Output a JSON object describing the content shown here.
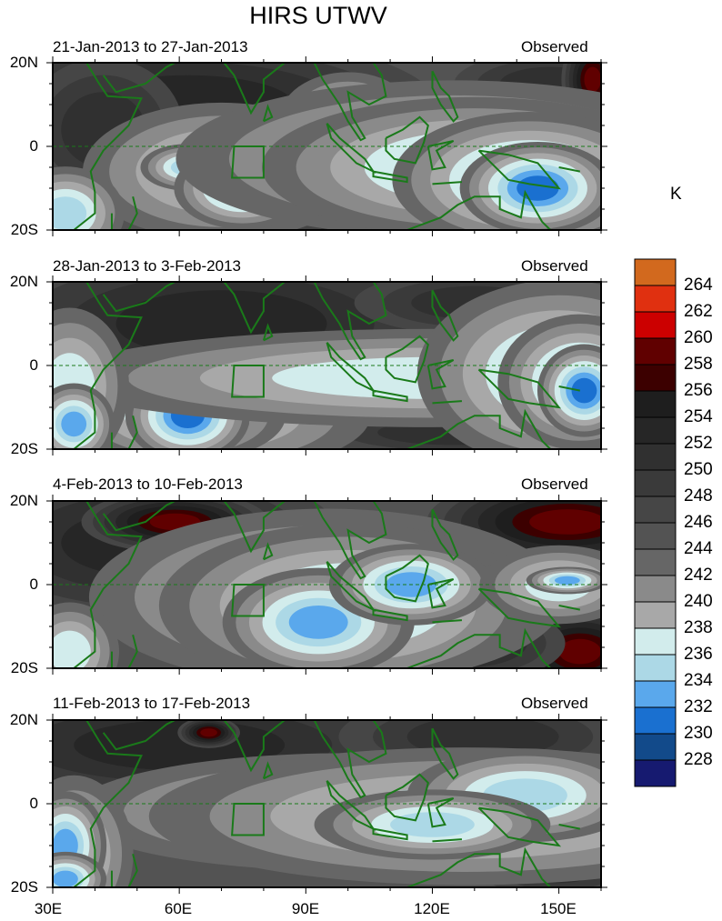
{
  "chart_data": {
    "type": "heatmap",
    "title": "HIRS UTWV",
    "units": "K",
    "xlim": [
      30,
      160
    ],
    "ylim": [
      -20,
      20
    ],
    "x_ticks": [
      "30E",
      "60E",
      "90E",
      "120E",
      "150E"
    ],
    "x_tick_values": [
      30,
      60,
      90,
      120,
      150
    ],
    "y_ticks": [
      "20N",
      "0",
      "20S"
    ],
    "y_tick_values": [
      20,
      0,
      -20
    ],
    "background_value": 245,
    "colorbar": {
      "labels": [
        "264",
        "262",
        "260",
        "258",
        "256",
        "254",
        "252",
        "250",
        "248",
        "246",
        "244",
        "242",
        "240",
        "238",
        "236",
        "234",
        "232",
        "230",
        "228"
      ],
      "levels": [
        228,
        230,
        232,
        234,
        236,
        238,
        240,
        242,
        244,
        246,
        248,
        250,
        252,
        254,
        256,
        258,
        260,
        262,
        264
      ],
      "colors": [
        "#161a70",
        "#124a8a",
        "#1a70d0",
        "#5aa8ec",
        "#acd8e6",
        "#d2ecec",
        "#a8a8a8",
        "#8a8a8a",
        "#666666",
        "#535353",
        "#464646",
        "#3a3a3a",
        "#303030",
        "#262626",
        "#1e1e1e",
        "#3c0000",
        "#600000",
        "#cc0000",
        "#e03010",
        "#d2691e"
      ]
    },
    "panels": [
      {
        "left": "21-Jan-2013 to 27-Jan-2013",
        "right": "Observed",
        "features": [
          [
            62,
            10,
            25,
            7,
            253
          ],
          [
            42,
            4,
            10,
            9,
            251
          ],
          [
            130,
            -18,
            20,
            3,
            253
          ],
          [
            148,
            15,
            12,
            4,
            251
          ],
          [
            158,
            16,
            2,
            3,
            259
          ],
          [
            70,
            -6,
            14,
            7,
            237
          ],
          [
            62,
            -5,
            4,
            2,
            235
          ],
          [
            75,
            -10,
            5,
            3,
            233
          ],
          [
            100,
            6,
            7,
            5,
            237
          ],
          [
            125,
            -3,
            28,
            8,
            237
          ],
          [
            130,
            -5,
            18,
            6,
            235
          ],
          [
            143,
            -8,
            10,
            5,
            233
          ],
          [
            145,
            -10,
            5,
            3,
            231
          ],
          [
            33,
            -16,
            5,
            4,
            235
          ]
        ]
      },
      {
        "left": "28-Jan-2013 to 3-Feb-2013",
        "right": "Observed",
        "features": [
          [
            70,
            10,
            25,
            8,
            253
          ],
          [
            130,
            15,
            15,
            4,
            251
          ],
          [
            125,
            -16,
            18,
            3,
            251
          ],
          [
            63,
            -12,
            18,
            6,
            237
          ],
          [
            60,
            -12,
            9,
            4,
            235
          ],
          [
            62,
            -12,
            4,
            3,
            231
          ],
          [
            120,
            -3,
            38,
            5,
            237
          ],
          [
            150,
            -2,
            12,
            8,
            235
          ],
          [
            155,
            -4,
            6,
            5,
            233
          ],
          [
            156,
            -6,
            3,
            3,
            231
          ],
          [
            34,
            -5,
            6,
            8,
            237
          ],
          [
            35,
            -14,
            3,
            3,
            233
          ]
        ]
      },
      {
        "left": "4-Feb-2013 to 10-Feb-2013",
        "right": "Observed",
        "features": [
          [
            52,
            10,
            20,
            8,
            253
          ],
          [
            59,
            15,
            6,
            2,
            259
          ],
          [
            152,
            15,
            9,
            3,
            259
          ],
          [
            155,
            -16,
            5,
            3,
            259
          ],
          [
            128,
            -14,
            10,
            4,
            253
          ],
          [
            95,
            -3,
            24,
            9,
            237
          ],
          [
            100,
            -5,
            16,
            7,
            235
          ],
          [
            93,
            -9,
            7,
            4,
            233
          ],
          [
            115,
            0,
            6,
            3,
            233
          ],
          [
            150,
            0,
            8,
            4,
            237
          ],
          [
            152,
            1,
            3,
            1,
            233
          ],
          [
            34,
            -16,
            5,
            5,
            237
          ]
        ]
      },
      {
        "left": "11-Feb-2013 to 17-Feb-2013",
        "right": "Observed",
        "features": [
          [
            60,
            14,
            25,
            6,
            253
          ],
          [
            67,
            17,
            2,
            1,
            259
          ],
          [
            132,
            16,
            18,
            5,
            251
          ],
          [
            150,
            -15,
            10,
            4,
            251
          ],
          [
            100,
            -2,
            28,
            6,
            237
          ],
          [
            128,
            -3,
            32,
            7,
            237
          ],
          [
            142,
            2,
            10,
            4,
            235
          ],
          [
            120,
            -5,
            10,
            3,
            235
          ],
          [
            35,
            -12,
            6,
            8,
            237
          ],
          [
            33,
            -10,
            3,
            4,
            233
          ],
          [
            33,
            -18,
            3,
            2,
            233
          ]
        ]
      }
    ]
  }
}
